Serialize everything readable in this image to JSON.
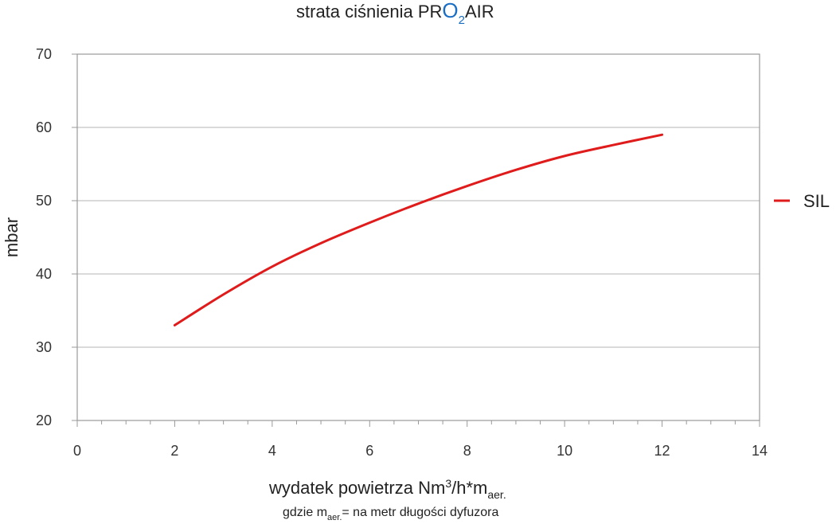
{
  "chart_data": {
    "type": "line",
    "title": {
      "prefix": "strata ciśnienia ",
      "brand_pr": "PR",
      "brand_o": "O",
      "brand_sub": "2",
      "brand_air": "AIR"
    },
    "xlabel": {
      "main": "wydatek powietrza Nm",
      "sup": "3",
      "middle": "/h*m",
      "sub": "aer."
    },
    "xlabel_note": {
      "prefix": "gdzie m",
      "sub": "aer.",
      "suffix": "= na metr długości dyfuzora"
    },
    "ylabel": "mbar",
    "xlim": [
      0,
      14
    ],
    "ylim": [
      20,
      70
    ],
    "x_ticks": [
      "0",
      "2",
      "4",
      "6",
      "8",
      "10",
      "12",
      "14"
    ],
    "y_ticks": [
      "20",
      "30",
      "40",
      "50",
      "60",
      "70"
    ],
    "grid": "horizontal",
    "legend_position": "right",
    "series": [
      {
        "name": "SIL",
        "color": "#e01b1b",
        "points": [
          [
            2,
            33
          ],
          [
            3,
            37.2
          ],
          [
            4,
            41
          ],
          [
            5,
            44.2
          ],
          [
            6,
            47
          ],
          [
            7,
            49.6
          ],
          [
            8,
            52
          ],
          [
            9,
            54.2
          ],
          [
            10,
            56.1
          ],
          [
            11,
            57.6
          ],
          [
            12,
            59
          ]
        ]
      }
    ]
  }
}
